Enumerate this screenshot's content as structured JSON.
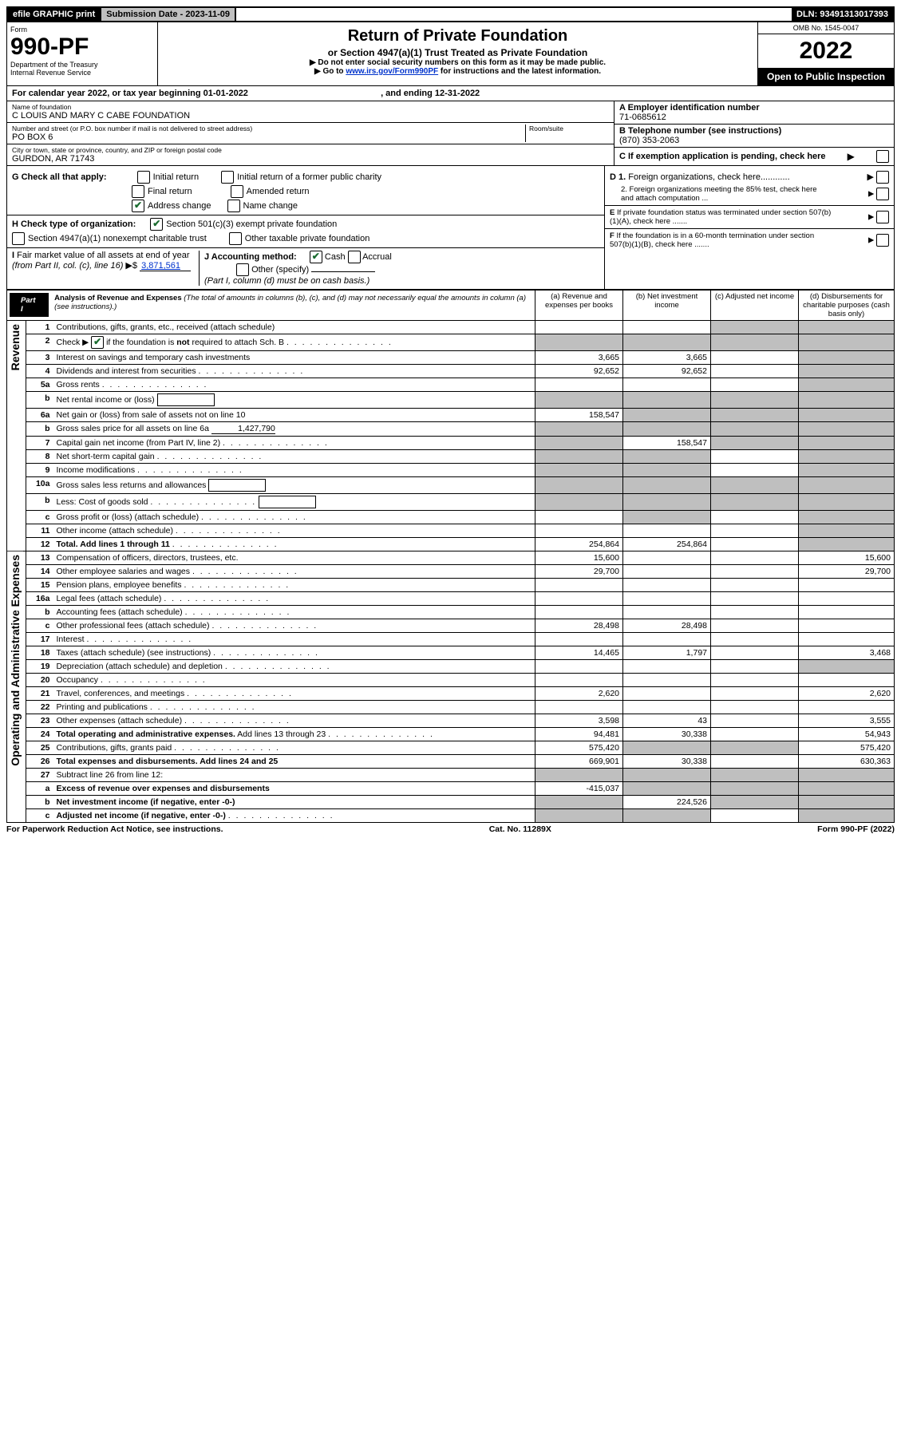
{
  "top_bar": {
    "efile": "efile GRAPHIC print",
    "submission_label": "Submission Date - 2023-11-09",
    "dln": "DLN: 93491313017393"
  },
  "header": {
    "form_label": "Form",
    "form_number": "990-PF",
    "dept1": "Department of the Treasury",
    "dept2": "Internal Revenue Service",
    "title": "Return of Private Foundation",
    "subtitle": "or Section 4947(a)(1) Trust Treated as Private Foundation",
    "instr1": "▶ Do not enter social security numbers on this form as it may be made public.",
    "instr2_pre": "▶ Go to ",
    "instr2_link": "www.irs.gov/Form990PF",
    "instr2_post": " for instructions and the latest information.",
    "omb": "OMB No. 1545-0047",
    "year": "2022",
    "open_public": "Open to Public Inspection"
  },
  "cal_year": {
    "prefix": "For calendar year 2022, or tax year beginning ",
    "begin": "01-01-2022",
    "mid": " , and ending ",
    "end": "12-31-2022"
  },
  "name_block": {
    "name_label": "Name of foundation",
    "name": "C LOUIS AND MARY C CABE FOUNDATION",
    "addr_label": "Number and street (or P.O. box number if mail is not delivered to street address)",
    "room_label": "Room/suite",
    "addr": "PO BOX 6",
    "city_label": "City or town, state or province, country, and ZIP or foreign postal code",
    "city": "GURDON, AR  71743",
    "a_label": "A Employer identification number",
    "a_val": "71-0685612",
    "b_label": "B Telephone number (see instructions)",
    "b_val": "(870) 353-2063",
    "c_label": "C If exemption application is pending, check here"
  },
  "checks": {
    "g_label": "G Check all that apply:",
    "g_items": [
      "Initial return",
      "Initial return of a former public charity",
      "Final return",
      "Amended return",
      "Address change",
      "Name change"
    ],
    "g_checked_idx": 4,
    "h_label": "H Check type of organization:",
    "h1": "Section 501(c)(3) exempt private foundation",
    "h2": "Section 4947(a)(1) nonexempt charitable trust",
    "h3": "Other taxable private foundation",
    "i_label": "I Fair market value of all assets at end of year (from Part II, col. (c), line 16) ▶$ ",
    "i_val": "3,871,561",
    "j_label": "J Accounting method:",
    "j1": "Cash",
    "j2": "Accrual",
    "j3": "Other (specify)",
    "j_note": "(Part I, column (d) must be on cash basis.)",
    "d1": "D 1. Foreign organizations, check here............",
    "d2": "2. Foreign organizations meeting the 85% test, check here and attach computation ...",
    "e": "E If private foundation status was terminated under section 507(b)(1)(A), check here .......",
    "f": "F If the foundation is in a 60-month termination under section 507(b)(1)(B), check here .......",
    "right_arrow": "▶"
  },
  "part1": {
    "tab": "Part I",
    "title": "Analysis of Revenue and Expenses",
    "title_note": " (The total of amounts in columns (b), (c), and (d) may not necessarily equal the amounts in column (a) (see instructions).)",
    "col_a": "(a) Revenue and expenses per books",
    "col_b": "(b) Net investment income",
    "col_c": "(c) Adjusted net income",
    "col_d": "(d) Disbursements for charitable purposes (cash basis only)"
  },
  "side_labels": {
    "revenue": "Revenue",
    "expenses": "Operating and Administrative Expenses"
  },
  "rows": [
    {
      "n": "1",
      "desc": "Contributions, gifts, grants, etc., received (attach schedule)",
      "a": "",
      "b": "",
      "c": "gray",
      "d": "gray"
    },
    {
      "n": "2",
      "desc": "Check ▶ ☑ if the foundation is not required to attach Sch. B",
      "dotted": true,
      "a": "gray",
      "b": "gray",
      "c": "gray",
      "d": "gray",
      "has_check": true
    },
    {
      "n": "3",
      "desc": "Interest on savings and temporary cash investments",
      "a": "3,665",
      "b": "3,665",
      "c": "",
      "d": "gray"
    },
    {
      "n": "4",
      "desc": "Dividends and interest from securities",
      "dotted": true,
      "a": "92,652",
      "b": "92,652",
      "c": "",
      "d": "gray"
    },
    {
      "n": "5a",
      "desc": "Gross rents",
      "dotted": true,
      "a": "",
      "b": "",
      "c": "",
      "d": "gray"
    },
    {
      "n": "b",
      "desc": "Net rental income or (loss)",
      "trailing_box": true,
      "a": "gray",
      "b": "gray",
      "c": "gray",
      "d": "gray"
    },
    {
      "n": "6a",
      "desc": "Net gain or (loss) from sale of assets not on line 10",
      "a": "158,547",
      "b": "gray",
      "c": "gray",
      "d": "gray"
    },
    {
      "n": "b",
      "desc": "Gross sales price for all assets on line 6a",
      "trailing_val": "1,427,790",
      "a": "gray",
      "b": "gray",
      "c": "gray",
      "d": "gray"
    },
    {
      "n": "7",
      "desc": "Capital gain net income (from Part IV, line 2)",
      "dotted": true,
      "a": "gray",
      "b": "158,547",
      "c": "gray",
      "d": "gray"
    },
    {
      "n": "8",
      "desc": "Net short-term capital gain",
      "dotted": true,
      "a": "gray",
      "b": "gray",
      "c": "",
      "d": "gray"
    },
    {
      "n": "9",
      "desc": "Income modifications",
      "dotted": true,
      "a": "gray",
      "b": "gray",
      "c": "",
      "d": "gray"
    },
    {
      "n": "10a",
      "desc": "Gross sales less returns and allowances",
      "trailing_box": true,
      "a": "gray",
      "b": "gray",
      "c": "gray",
      "d": "gray"
    },
    {
      "n": "b",
      "desc": "Less: Cost of goods sold",
      "dotted": true,
      "trailing_box": true,
      "a": "gray",
      "b": "gray",
      "c": "gray",
      "d": "gray"
    },
    {
      "n": "c",
      "desc": "Gross profit or (loss) (attach schedule)",
      "dotted": true,
      "a": "",
      "b": "gray",
      "c": "",
      "d": "gray"
    },
    {
      "n": "11",
      "desc": "Other income (attach schedule)",
      "dotted": true,
      "a": "",
      "b": "",
      "c": "",
      "d": "gray"
    },
    {
      "n": "12",
      "desc": "Total. Add lines 1 through 11",
      "dotted": true,
      "bold": true,
      "a": "254,864",
      "b": "254,864",
      "c": "",
      "d": "gray"
    },
    {
      "n": "13",
      "desc": "Compensation of officers, directors, trustees, etc.",
      "a": "15,600",
      "b": "",
      "c": "",
      "d": "15,600"
    },
    {
      "n": "14",
      "desc": "Other employee salaries and wages",
      "dotted": true,
      "a": "29,700",
      "b": "",
      "c": "",
      "d": "29,700"
    },
    {
      "n": "15",
      "desc": "Pension plans, employee benefits",
      "dotted": true,
      "a": "",
      "b": "",
      "c": "",
      "d": ""
    },
    {
      "n": "16a",
      "desc": "Legal fees (attach schedule)",
      "dotted": true,
      "a": "",
      "b": "",
      "c": "",
      "d": ""
    },
    {
      "n": "b",
      "desc": "Accounting fees (attach schedule)",
      "dotted": true,
      "a": "",
      "b": "",
      "c": "",
      "d": ""
    },
    {
      "n": "c",
      "desc": "Other professional fees (attach schedule)",
      "dotted": true,
      "a": "28,498",
      "b": "28,498",
      "c": "",
      "d": ""
    },
    {
      "n": "17",
      "desc": "Interest",
      "dotted": true,
      "a": "",
      "b": "",
      "c": "",
      "d": ""
    },
    {
      "n": "18",
      "desc": "Taxes (attach schedule) (see instructions)",
      "dotted": true,
      "a": "14,465",
      "b": "1,797",
      "c": "",
      "d": "3,468"
    },
    {
      "n": "19",
      "desc": "Depreciation (attach schedule) and depletion",
      "dotted": true,
      "a": "",
      "b": "",
      "c": "",
      "d": "gray"
    },
    {
      "n": "20",
      "desc": "Occupancy",
      "dotted": true,
      "a": "",
      "b": "",
      "c": "",
      "d": ""
    },
    {
      "n": "21",
      "desc": "Travel, conferences, and meetings",
      "dotted": true,
      "a": "2,620",
      "b": "",
      "c": "",
      "d": "2,620"
    },
    {
      "n": "22",
      "desc": "Printing and publications",
      "dotted": true,
      "a": "",
      "b": "",
      "c": "",
      "d": ""
    },
    {
      "n": "23",
      "desc": "Other expenses (attach schedule)",
      "dotted": true,
      "a": "3,598",
      "b": "43",
      "c": "",
      "d": "3,555"
    },
    {
      "n": "24",
      "desc": "Total operating and administrative expenses. Add lines 13 through 23",
      "dotted": true,
      "bold_first": true,
      "a": "94,481",
      "b": "30,338",
      "c": "",
      "d": "54,943"
    },
    {
      "n": "25",
      "desc": "Contributions, gifts, grants paid",
      "dotted": true,
      "a": "575,420",
      "b": "gray",
      "c": "gray",
      "d": "575,420"
    },
    {
      "n": "26",
      "desc": "Total expenses and disbursements. Add lines 24 and 25",
      "bold": true,
      "a": "669,901",
      "b": "30,338",
      "c": "",
      "d": "630,363"
    },
    {
      "n": "27",
      "desc": "Subtract line 26 from line 12:",
      "a": "gray",
      "b": "gray",
      "c": "gray",
      "d": "gray"
    },
    {
      "n": "a",
      "desc": "Excess of revenue over expenses and disbursements",
      "bold": true,
      "a": "-415,037",
      "b": "gray",
      "c": "gray",
      "d": "gray"
    },
    {
      "n": "b",
      "desc": "Net investment income (if negative, enter -0-)",
      "bold": true,
      "a": "gray",
      "b": "224,526",
      "c": "gray",
      "d": "gray"
    },
    {
      "n": "c",
      "desc": "Adjusted net income (if negative, enter -0-)",
      "dotted": true,
      "bold": true,
      "a": "gray",
      "b": "gray",
      "c": "",
      "d": "gray"
    }
  ],
  "footer": {
    "left": "For Paperwork Reduction Act Notice, see instructions.",
    "mid": "Cat. No. 11289X",
    "right": "Form 990-PF (2022)"
  },
  "colors": {
    "gray_bg": "#bfbfbf",
    "black": "#000000",
    "link": "#0033cc",
    "check_green": "#1a6b2f"
  },
  "not_bold_text": "not"
}
